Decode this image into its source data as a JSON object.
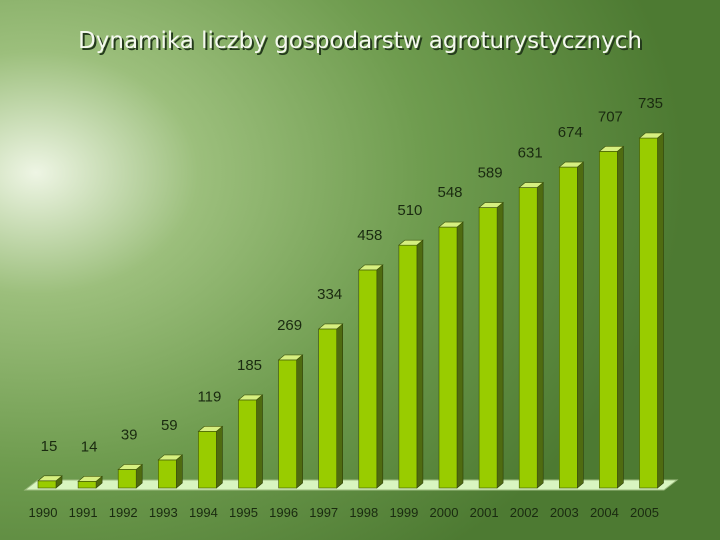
{
  "chart_data": {
    "type": "bar",
    "title": "Dynamika liczby gospodarstw agroturystycznych",
    "categories": [
      "1990",
      "1991",
      "1992",
      "1993",
      "1994",
      "1995",
      "1996",
      "1997",
      "1998",
      "1999",
      "2000",
      "2001",
      "2002",
      "2003",
      "2004",
      "2005"
    ],
    "values": [
      15,
      14,
      39,
      59,
      119,
      185,
      269,
      334,
      458,
      510,
      548,
      589,
      631,
      674,
      707,
      735
    ],
    "color": "#99cc00"
  }
}
